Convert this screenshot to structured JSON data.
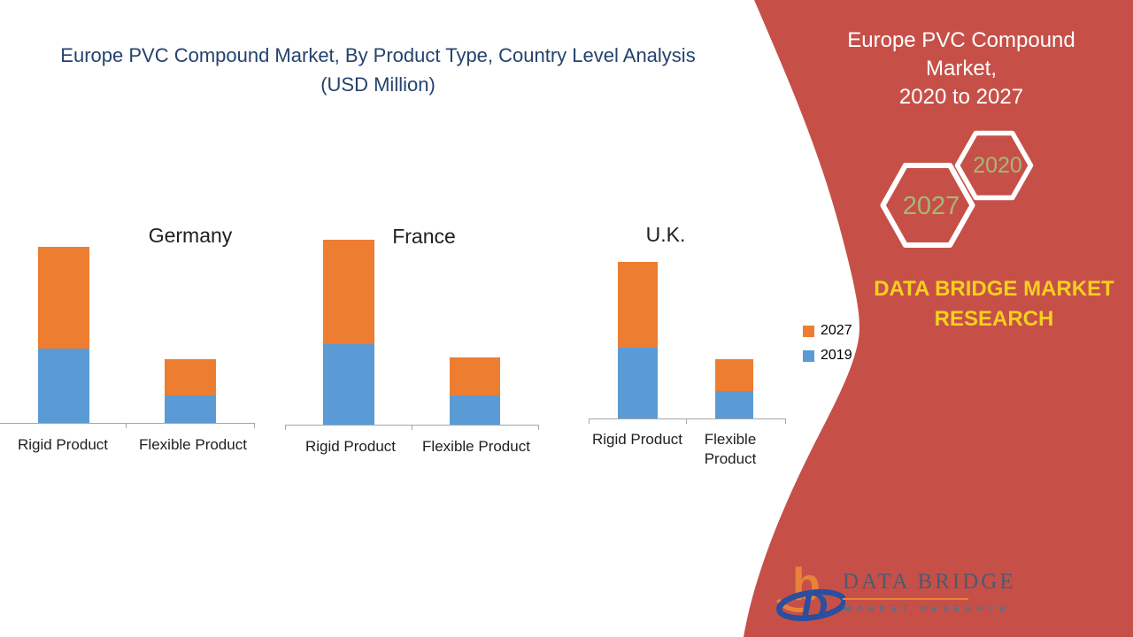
{
  "page_title": {
    "line1": "Europe PVC Compound Market, By Product Type, Country Level Analysis",
    "line2": "(USD Million)"
  },
  "legend": {
    "items": [
      {
        "label": "2027",
        "color": "#ED7D31"
      },
      {
        "label": "2019",
        "color": "#5B9BD5"
      }
    ]
  },
  "chart_data": [
    {
      "type": "bar",
      "stacked": true,
      "title": "Germany",
      "categories": [
        "Rigid Product",
        "Flexible Product"
      ],
      "series": [
        {
          "name": "2019",
          "color": "#5B9BD5",
          "values": [
            84,
            31
          ]
        },
        {
          "name": "2027",
          "color": "#ED7D31",
          "values": [
            115,
            41
          ]
        }
      ],
      "ylim": [
        0,
        230
      ],
      "value_axis_shown": false,
      "legend_position": "right"
    },
    {
      "type": "bar",
      "stacked": true,
      "title": "France",
      "categories": [
        "Rigid Product",
        "Flexible Product"
      ],
      "series": [
        {
          "name": "2019",
          "color": "#5B9BD5",
          "values": [
            91,
            33
          ]
        },
        {
          "name": "2027",
          "color": "#ED7D31",
          "values": [
            118,
            43
          ]
        }
      ],
      "ylim": [
        0,
        230
      ],
      "value_axis_shown": false,
      "legend_position": "right"
    },
    {
      "type": "bar",
      "stacked": true,
      "title": "U.K.",
      "categories": [
        "Rigid Product",
        "Flexible Product"
      ],
      "series": [
        {
          "name": "2019",
          "color": "#5B9BD5",
          "values": [
            80,
            31
          ]
        },
        {
          "name": "2027",
          "color": "#ED7D31",
          "values": [
            97,
            36
          ]
        }
      ],
      "ylim": [
        0,
        230
      ],
      "value_axis_shown": false,
      "legend_position": "right"
    }
  ],
  "right_panel": {
    "panel_color": "#C65048",
    "heading": {
      "line1": "Europe PVC Compound Market,",
      "line2": "2020 to 2027"
    },
    "hexagons": {
      "back_year": "2027",
      "front_year": "2020",
      "text_color": "#A6B873",
      "outline_color": "#FFFFFF"
    },
    "brand_text": {
      "line1": "DATA BRIDGE MARKET",
      "line2": "RESEARCH",
      "color": "#F5D01E"
    },
    "logo": {
      "monogram_b": "b",
      "monogram_d": "D",
      "title": "DATA BRIDGE",
      "subtitle": "MARKET RESEARCH"
    }
  }
}
